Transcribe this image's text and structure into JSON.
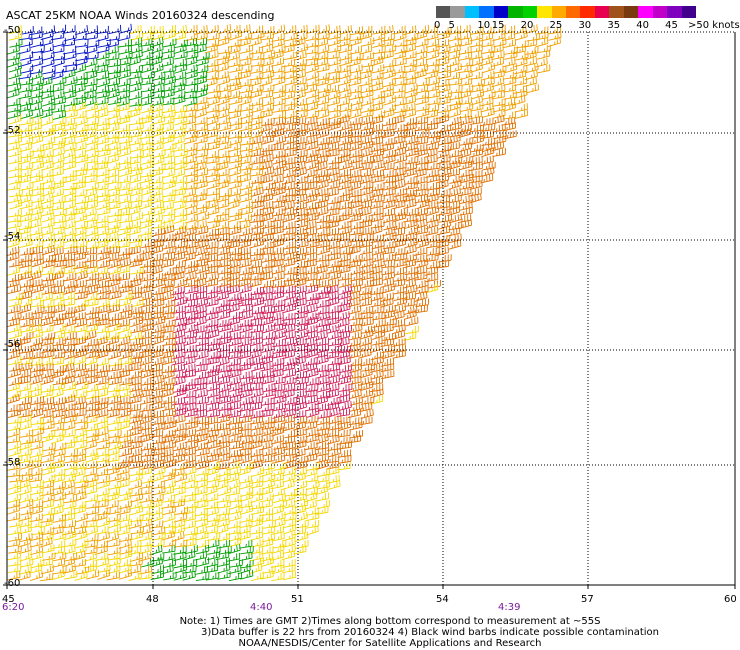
{
  "title": "ASCAT 25KM NOAA Winds 20160324 descending",
  "legend": {
    "bins": [
      {
        "label": "0",
        "color": "#555555"
      },
      {
        "label": "5",
        "color": "#9a9a9a"
      },
      {
        "label": "",
        "color": "#00bfff"
      },
      {
        "label": "10",
        "color": "#0070ff"
      },
      {
        "label": "15",
        "color": "#0000c8"
      },
      {
        "label": "",
        "color": "#00b400"
      },
      {
        "label": "20",
        "color": "#00d200"
      },
      {
        "label": "",
        "color": "#ffe600"
      },
      {
        "label": "25",
        "color": "#ffaa00"
      },
      {
        "label": "",
        "color": "#ff6a00"
      },
      {
        "label": "30",
        "color": "#ff2a00"
      },
      {
        "label": "",
        "color": "#e80050"
      },
      {
        "label": "35",
        "color": "#a0521c"
      },
      {
        "label": "",
        "color": "#7a3a10"
      },
      {
        "label": "40",
        "color": "#ff00ff"
      },
      {
        "label": "",
        "color": "#c000c8"
      },
      {
        "label": "45",
        "color": "#8000c0"
      },
      {
        "label": "",
        "color": "#40008c"
      }
    ],
    "unit_label": ">50 knots"
  },
  "map": {
    "lat_labels": [
      "-50",
      "-52",
      "-54",
      "-56",
      "-58",
      "-60"
    ],
    "lon_labels": [
      "45",
      "48",
      "51",
      "54",
      "57",
      "60"
    ],
    "lon_range": [
      45,
      60
    ],
    "lat_range": [
      -60,
      -50
    ],
    "time_labels": [
      "6:20",
      "4:40",
      "4:39"
    ],
    "grid": "dotted"
  },
  "notes": [
    "Note: 1) Times are GMT 2)Times along bottom correspond to measurement at ~55S",
    "3)Data buffer is 22 hrs from 20160324 4) Black wind barbs indicate possible contamination",
    "NOAA/NESDIS/Center for Satellite Applications and Research"
  ],
  "colors": {
    "blue": "#0010c8",
    "green": "#00a000",
    "yellow": "#f5d800",
    "orange": "#f0a000",
    "dark_orange": "#e07000",
    "red": "#d0205a",
    "grid": "#000000"
  }
}
